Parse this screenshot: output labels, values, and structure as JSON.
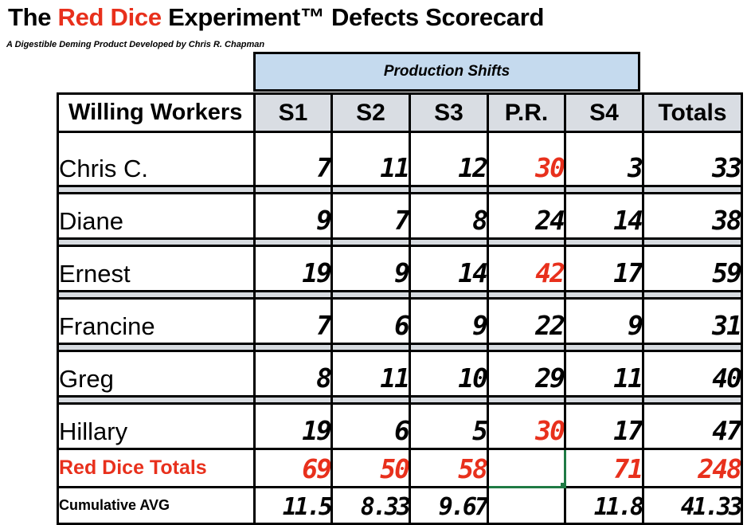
{
  "title": {
    "part1": "The ",
    "red": "Red Dice",
    "part2": " Experiment™ Defects Scorecard"
  },
  "subtitle": "A Digestible Deming Product Developed by Chris R. Chapman",
  "group_header": "Production Shifts",
  "columns": [
    "Willing Workers",
    "S1",
    "S2",
    "S3",
    "P.R.",
    "S4",
    "Totals"
  ],
  "rows": [
    {
      "name": "Chris C.",
      "values": [
        "7",
        "11",
        "12",
        "30",
        "3",
        "33"
      ],
      "pr_red": true
    },
    {
      "name": "Diane",
      "values": [
        "9",
        "7",
        "8",
        "24",
        "14",
        "38"
      ],
      "pr_red": false
    },
    {
      "name": "Ernest",
      "values": [
        "19",
        "9",
        "14",
        "42",
        "17",
        "59"
      ],
      "pr_red": true
    },
    {
      "name": "Francine",
      "values": [
        "7",
        "6",
        "9",
        "22",
        "9",
        "31"
      ],
      "pr_red": false
    },
    {
      "name": "Greg",
      "values": [
        "8",
        "11",
        "10",
        "29",
        "11",
        "40"
      ],
      "pr_red": false
    },
    {
      "name": "Hillary",
      "values": [
        "19",
        "6",
        "5",
        "30",
        "17",
        "47"
      ],
      "pr_red": true
    }
  ],
  "totals": {
    "label": "Red Dice Totals",
    "values": [
      "69",
      "50",
      "58",
      "",
      "71",
      "248"
    ]
  },
  "average": {
    "label": "Cumulative AVG",
    "values": [
      "11.5",
      "8.33",
      "9.67",
      "",
      "11.8",
      "41.33"
    ]
  },
  "colors": {
    "red": "#e8301c",
    "header_bg": "#d9dde3",
    "group_bg": "#c5daee",
    "selection": "#1f7a44"
  }
}
